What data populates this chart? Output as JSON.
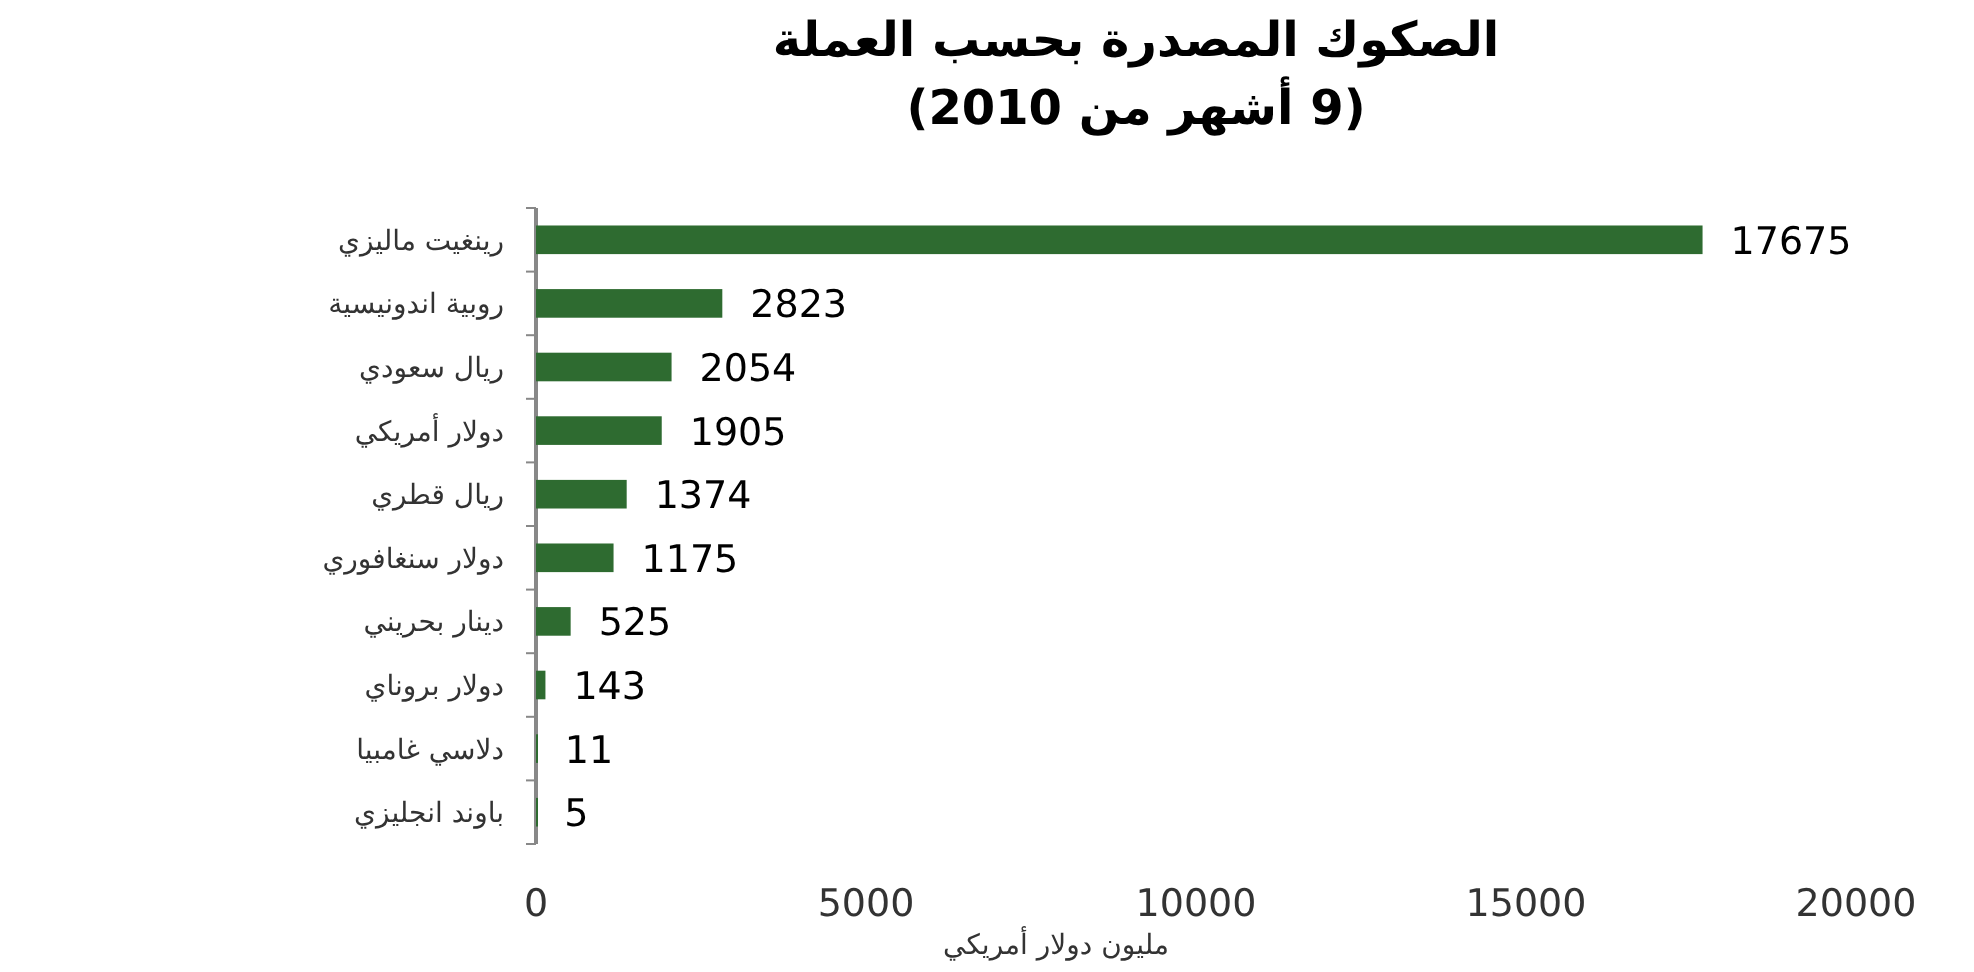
{
  "chart_data": {
    "type": "bar",
    "orientation": "horizontal",
    "title": "الصكوك المصدرة بحسب العملة",
    "subtitle": "(9 أشهر من 2010)",
    "xlabel": "مليون دولار أمريكي",
    "categories": [
      "رينغيت ماليزي",
      "روبية اندونيسية",
      "ريال سعودي",
      "دولار أمريكي",
      "ريال قطري",
      "دولار سنغافوري",
      "دينار بحريني",
      "دولار بروناي",
      "دلاسي غامبيا",
      "باوند انجليزي"
    ],
    "values": [
      17675,
      2823,
      2054,
      1905,
      1374,
      1175,
      525,
      143,
      11,
      5
    ],
    "color": "#2e6b30",
    "xlim": [
      0,
      20000
    ],
    "xticks": [
      0,
      5000,
      10000,
      15000,
      20000
    ],
    "data_labels": true,
    "grid": false
  }
}
